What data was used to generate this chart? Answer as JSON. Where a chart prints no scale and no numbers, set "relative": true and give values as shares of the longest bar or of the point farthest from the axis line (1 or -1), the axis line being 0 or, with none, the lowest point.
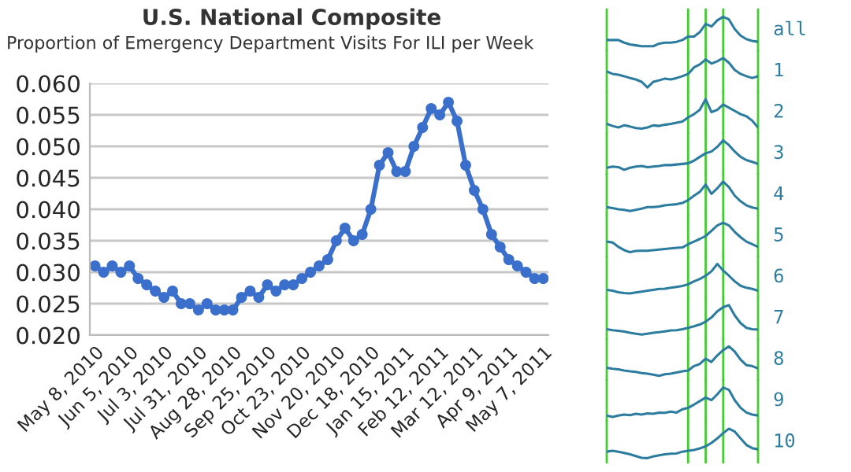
{
  "chart_data": [
    {
      "type": "line",
      "title": "U.S. National Composite",
      "subtitle": "Proportion of Emergency Department Visits For ILI per Week",
      "categories": [
        "May 8, 2010",
        null,
        null,
        null,
        "Jun 5, 2010",
        null,
        null,
        null,
        "Jul 3, 2010",
        null,
        null,
        null,
        "Jul 31, 2010",
        null,
        null,
        null,
        "Aug 28, 2010",
        null,
        null,
        null,
        "Sep 25, 2010",
        null,
        null,
        null,
        "Oct 23, 2010",
        null,
        null,
        null,
        "Nov 20, 2010",
        null,
        null,
        null,
        "Dec 18, 2010",
        null,
        null,
        null,
        "Jan 15, 2011",
        null,
        null,
        null,
        "Feb 12, 2011",
        null,
        null,
        null,
        "Mar 12, 2011",
        null,
        null,
        null,
        "Apr 9, 2011",
        null,
        null,
        null,
        "May 7, 2011"
      ],
      "series": [
        {
          "color": "#3a6fcc",
          "values": [
            0.031,
            0.03,
            0.031,
            0.03,
            0.031,
            0.029,
            0.028,
            0.027,
            0.026,
            0.027,
            0.025,
            0.025,
            0.024,
            0.025,
            0.024,
            0.024,
            0.024,
            0.026,
            0.027,
            0.026,
            0.028,
            0.027,
            0.028,
            0.028,
            0.029,
            0.03,
            0.031,
            0.032,
            0.035,
            0.037,
            0.035,
            0.036,
            0.04,
            0.047,
            0.049,
            0.046,
            0.046,
            0.05,
            0.053,
            0.056,
            0.055,
            0.057,
            0.054,
            0.047,
            0.043,
            0.04,
            0.036,
            0.034,
            0.032,
            0.031,
            0.03,
            0.029,
            0.029
          ]
        }
      ],
      "ylim": [
        0.02,
        0.06
      ],
      "yticks": [
        {
          "value": 0.02,
          "label": "0.020"
        },
        {
          "value": 0.025,
          "label": "0.025"
        },
        {
          "value": 0.03,
          "label": "0.030"
        },
        {
          "value": 0.035,
          "label": "0.035"
        },
        {
          "value": 0.04,
          "label": "0.040"
        },
        {
          "value": 0.045,
          "label": "0.045"
        },
        {
          "value": 0.05,
          "label": "0.050"
        },
        {
          "value": 0.055,
          "label": "0.055"
        },
        {
          "value": 0.06,
          "label": "0.060"
        }
      ],
      "grid": "y",
      "marker": "circle",
      "line_style": "solid"
    },
    {
      "type": "line",
      "relative": true,
      "categories": [
        null,
        null,
        null,
        null,
        null,
        null,
        null,
        null,
        null,
        null,
        null,
        null,
        null,
        null,
        null,
        null,
        null,
        null,
        null,
        null,
        null,
        null,
        null,
        null,
        null,
        null,
        null
      ],
      "grid": "x",
      "series": [
        {
          "name": "all",
          "color": "#2b7c9e",
          "values": [
            0.21,
            0.21,
            0.21,
            0.12,
            0.06,
            0.03,
            0,
            0,
            0,
            0.09,
            0.12,
            0.12,
            0.15,
            0.21,
            0.33,
            0.33,
            0.48,
            0.76,
            0.67,
            0.88,
            1,
            0.91,
            0.58,
            0.36,
            0.24,
            0.18,
            0.15
          ]
        }
      ]
    },
    {
      "type": "line",
      "relative": true,
      "categories": [
        null,
        null,
        null,
        null,
        null,
        null,
        null,
        null,
        null,
        null,
        null,
        null,
        null,
        null,
        null,
        null,
        null,
        null,
        null,
        null,
        null,
        null,
        null,
        null,
        null,
        null,
        null
      ],
      "grid": "x",
      "series": [
        {
          "name": "1",
          "color": "#2b7c9e",
          "values": [
            0.54,
            0.46,
            0.43,
            0.38,
            0.32,
            0.27,
            0.19,
            0,
            0.19,
            0.24,
            0.3,
            0.27,
            0.32,
            0.38,
            0.46,
            0.68,
            0.78,
            0.95,
            0.81,
            0.89,
            1,
            0.84,
            0.59,
            0.46,
            0.38,
            0.32,
            0.38
          ]
        }
      ]
    },
    {
      "type": "line",
      "relative": true,
      "categories": [
        null,
        null,
        null,
        null,
        null,
        null,
        null,
        null,
        null,
        null,
        null,
        null,
        null,
        null,
        null,
        null,
        null,
        null,
        null,
        null,
        null,
        null,
        null,
        null,
        null,
        null,
        null
      ],
      "grid": "x",
      "series": [
        {
          "name": "2",
          "color": "#2b7c9e",
          "values": [
            0.16,
            0.09,
            0.04,
            0.11,
            0.07,
            0.02,
            0,
            0.04,
            0.11,
            0.09,
            0.13,
            0.16,
            0.2,
            0.24,
            0.38,
            0.49,
            0.64,
            1,
            0.56,
            0.64,
            0.82,
            0.71,
            0.6,
            0.49,
            0.42,
            0.27,
            0.04
          ]
        }
      ]
    },
    {
      "type": "line",
      "relative": true,
      "categories": [
        null,
        null,
        null,
        null,
        null,
        null,
        null,
        null,
        null,
        null,
        null,
        null,
        null,
        null,
        null,
        null,
        null,
        null,
        null,
        null,
        null,
        null,
        null,
        null,
        null,
        null,
        null
      ],
      "grid": "x",
      "series": [
        {
          "name": "3",
          "color": "#2b7c9e",
          "values": [
            0.07,
            0.11,
            0.09,
            0,
            0.07,
            0.11,
            0.13,
            0.09,
            0.11,
            0.13,
            0.16,
            0.16,
            0.18,
            0.2,
            0.22,
            0.31,
            0.44,
            0.56,
            0.62,
            0.78,
            1,
            0.84,
            0.62,
            0.44,
            0.33,
            0.27,
            0.2
          ]
        }
      ]
    },
    {
      "type": "line",
      "relative": true,
      "categories": [
        null,
        null,
        null,
        null,
        null,
        null,
        null,
        null,
        null,
        null,
        null,
        null,
        null,
        null,
        null,
        null,
        null,
        null,
        null,
        null,
        null,
        null,
        null,
        null,
        null,
        null,
        null
      ],
      "grid": "x",
      "series": [
        {
          "name": "4",
          "color": "#2b7c9e",
          "values": [
            0.13,
            0.1,
            0.06,
            0.04,
            0,
            0.04,
            0.08,
            0.13,
            0.13,
            0.15,
            0.19,
            0.21,
            0.23,
            0.27,
            0.37,
            0.52,
            0.65,
            0.9,
            0.58,
            0.77,
            1,
            0.81,
            0.52,
            0.33,
            0.19,
            0.12,
            0.08
          ]
        }
      ]
    },
    {
      "type": "line",
      "relative": true,
      "categories": [
        null,
        null,
        null,
        null,
        null,
        null,
        null,
        null,
        null,
        null,
        null,
        null,
        null,
        null,
        null,
        null,
        null,
        null,
        null,
        null,
        null,
        null,
        null,
        null,
        null,
        null,
        null
      ],
      "grid": "x",
      "series": [
        {
          "name": "5",
          "color": "#2b7c9e",
          "values": [
            0.36,
            0.33,
            0.18,
            0.07,
            0,
            0.04,
            0.05,
            0.05,
            0.07,
            0.09,
            0.11,
            0.13,
            0.15,
            0.16,
            0.27,
            0.36,
            0.45,
            0.55,
            0.73,
            0.91,
            1,
            0.91,
            0.69,
            0.51,
            0.36,
            0.27,
            0.18
          ]
        }
      ]
    },
    {
      "type": "line",
      "relative": true,
      "categories": [
        null,
        null,
        null,
        null,
        null,
        null,
        null,
        null,
        null,
        null,
        null,
        null,
        null,
        null,
        null,
        null,
        null,
        null,
        null,
        null,
        null,
        null,
        null,
        null,
        null,
        null,
        null
      ],
      "grid": "x",
      "series": [
        {
          "name": "6",
          "color": "#2b7c9e",
          "values": [
            0.12,
            0.09,
            0.04,
            0.01,
            0,
            0.03,
            0.06,
            0.09,
            0.12,
            0.15,
            0.16,
            0.19,
            0.22,
            0.25,
            0.31,
            0.41,
            0.49,
            0.6,
            0.75,
            1,
            0.78,
            0.6,
            0.41,
            0.26,
            0.19,
            0.15,
            0.09
          ]
        }
      ]
    },
    {
      "type": "line",
      "relative": true,
      "categories": [
        null,
        null,
        null,
        null,
        null,
        null,
        null,
        null,
        null,
        null,
        null,
        null,
        null,
        null,
        null,
        null,
        null,
        null,
        null,
        null,
        null,
        null,
        null,
        null,
        null,
        null,
        null
      ],
      "grid": "x",
      "series": [
        {
          "name": "7",
          "color": "#2b7c9e",
          "values": [
            0.18,
            0.15,
            0.13,
            0.1,
            0.06,
            0.03,
            0,
            0.03,
            0.06,
            0.08,
            0.11,
            0.14,
            0.15,
            0.18,
            0.23,
            0.28,
            0.34,
            0.44,
            0.58,
            0.79,
            0.93,
            1,
            0.65,
            0.39,
            0.23,
            0.18,
            0.17
          ]
        }
      ]
    },
    {
      "type": "line",
      "relative": true,
      "categories": [
        null,
        null,
        null,
        null,
        null,
        null,
        null,
        null,
        null,
        null,
        null,
        null,
        null,
        null,
        null,
        null,
        null,
        null,
        null,
        null,
        null,
        null,
        null,
        null,
        null,
        null,
        null
      ],
      "grid": "x",
      "series": [
        {
          "name": "8",
          "color": "#2b7c9e",
          "values": [
            0.27,
            0.24,
            0.22,
            0.18,
            0.15,
            0.13,
            0.09,
            0.07,
            0.04,
            0,
            0.05,
            0.07,
            0.11,
            0.15,
            0.18,
            0.33,
            0.4,
            0.58,
            0.47,
            0.69,
            0.87,
            1,
            0.82,
            0.55,
            0.36,
            0.33,
            0.25
          ]
        }
      ]
    },
    {
      "type": "line",
      "relative": true,
      "categories": [
        null,
        null,
        null,
        null,
        null,
        null,
        null,
        null,
        null,
        null,
        null,
        null,
        null,
        null,
        null,
        null,
        null,
        null,
        null,
        null,
        null,
        null,
        null,
        null,
        null,
        null,
        null
      ],
      "grid": "x",
      "series": [
        {
          "name": "9",
          "color": "#2b7c9e",
          "values": [
            0.05,
            0,
            0.05,
            0.08,
            0.06,
            0.11,
            0.08,
            0.12,
            0.11,
            0.15,
            0.14,
            0.18,
            0.15,
            0.26,
            0.31,
            0.42,
            0.54,
            0.66,
            0.57,
            0.77,
            1,
            0.92,
            0.57,
            0.31,
            0.15,
            0.08,
            0.05
          ]
        }
      ]
    },
    {
      "type": "line",
      "relative": true,
      "categories": [
        null,
        null,
        null,
        null,
        null,
        null,
        null,
        null,
        null,
        null,
        null,
        null,
        null,
        null,
        null,
        null,
        null,
        null,
        null,
        null,
        null,
        null,
        null,
        null,
        null,
        null,
        null
      ],
      "grid": "x",
      "series": [
        {
          "name": "10",
          "color": "#2b7c9e",
          "values": [
            0.22,
            0.25,
            0.22,
            0.18,
            0.13,
            0.07,
            0.01,
            0,
            0.06,
            0.1,
            0.13,
            0.15,
            0.16,
            0.22,
            0.25,
            0.28,
            0.33,
            0.4,
            0.52,
            0.67,
            0.85,
            1,
            0.9,
            0.67,
            0.45,
            0.34,
            0.3
          ]
        }
      ]
    }
  ]
}
